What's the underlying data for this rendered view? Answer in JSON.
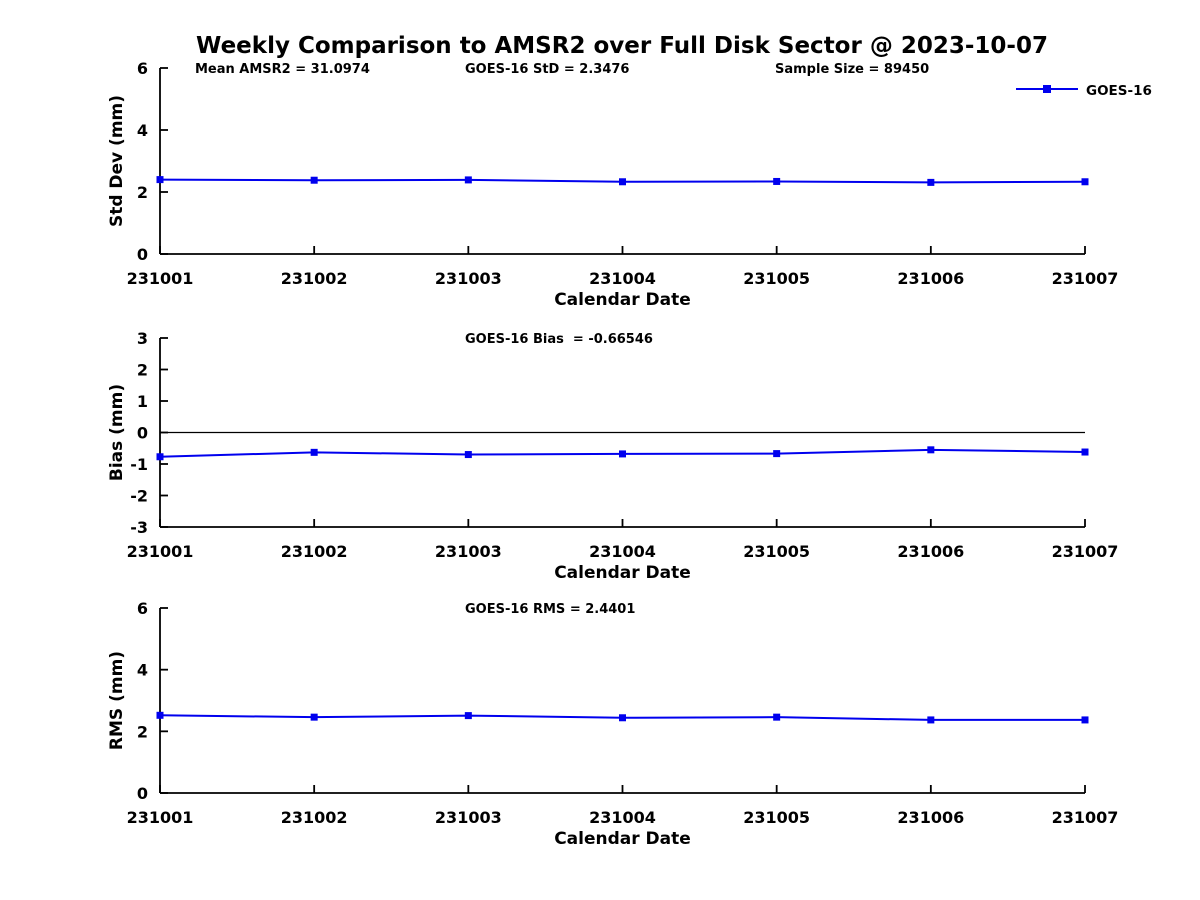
{
  "figure": {
    "title": "Weekly Comparison to AMSR2 over Full Disk Sector @ 2023-10-07",
    "legend": {
      "label": "GOES-16"
    },
    "colors": {
      "series": "#0000EE",
      "axis": "#000000",
      "text": "#000000",
      "background": "#ffffff"
    }
  },
  "chart_data": [
    {
      "type": "line",
      "title": "",
      "x": [
        231001,
        231002,
        231003,
        231004,
        231005,
        231006,
        231007
      ],
      "xtick_labels": [
        "231001",
        "231002",
        "231003",
        "231004",
        "231005",
        "231006",
        "231007"
      ],
      "series": [
        {
          "name": "GOES-16",
          "values": [
            2.4,
            2.38,
            2.39,
            2.33,
            2.34,
            2.31,
            2.33
          ]
        }
      ],
      "xlabel": "Calendar Date",
      "ylabel": "Std Dev (mm)",
      "ylim": [
        0,
        6
      ],
      "yticks": [
        0,
        2,
        4,
        6
      ],
      "ytick_labels": [
        "0",
        "2",
        "4",
        "6"
      ],
      "zero_line": false,
      "grid": false,
      "legend_position": "top-right-outside",
      "annotations": [
        "Mean AMSR2 = 31.0974",
        "GOES-16 StD = 2.3476",
        "Sample Size = 89450"
      ]
    },
    {
      "type": "line",
      "title": "",
      "x": [
        231001,
        231002,
        231003,
        231004,
        231005,
        231006,
        231007
      ],
      "xtick_labels": [
        "231001",
        "231002",
        "231003",
        "231004",
        "231005",
        "231006",
        "231007"
      ],
      "series": [
        {
          "name": "GOES-16",
          "values": [
            -0.77,
            -0.63,
            -0.7,
            -0.68,
            -0.67,
            -0.55,
            -0.62
          ]
        }
      ],
      "xlabel": "Calendar Date",
      "ylabel": "Bias (mm)",
      "ylim": [
        -3,
        3
      ],
      "yticks": [
        -3,
        -2,
        -1,
        0,
        1,
        2,
        3
      ],
      "ytick_labels": [
        "-3",
        "-2",
        "-1",
        "0",
        "1",
        "2",
        "3"
      ],
      "zero_line": true,
      "grid": false,
      "annotations": [
        "GOES-16 Bias  = -0.66546"
      ]
    },
    {
      "type": "line",
      "title": "",
      "x": [
        231001,
        231002,
        231003,
        231004,
        231005,
        231006,
        231007
      ],
      "xtick_labels": [
        "231001",
        "231002",
        "231003",
        "231004",
        "231005",
        "231006",
        "231007"
      ],
      "series": [
        {
          "name": "GOES-16",
          "values": [
            2.52,
            2.46,
            2.51,
            2.44,
            2.46,
            2.37,
            2.37
          ]
        }
      ],
      "xlabel": "Calendar Date",
      "ylabel": "RMS (mm)",
      "ylim": [
        0,
        6
      ],
      "yticks": [
        0,
        2,
        4,
        6
      ],
      "ytick_labels": [
        "0",
        "2",
        "4",
        "6"
      ],
      "zero_line": false,
      "grid": false,
      "annotations": [
        "GOES-16 RMS = 2.4401"
      ]
    }
  ]
}
